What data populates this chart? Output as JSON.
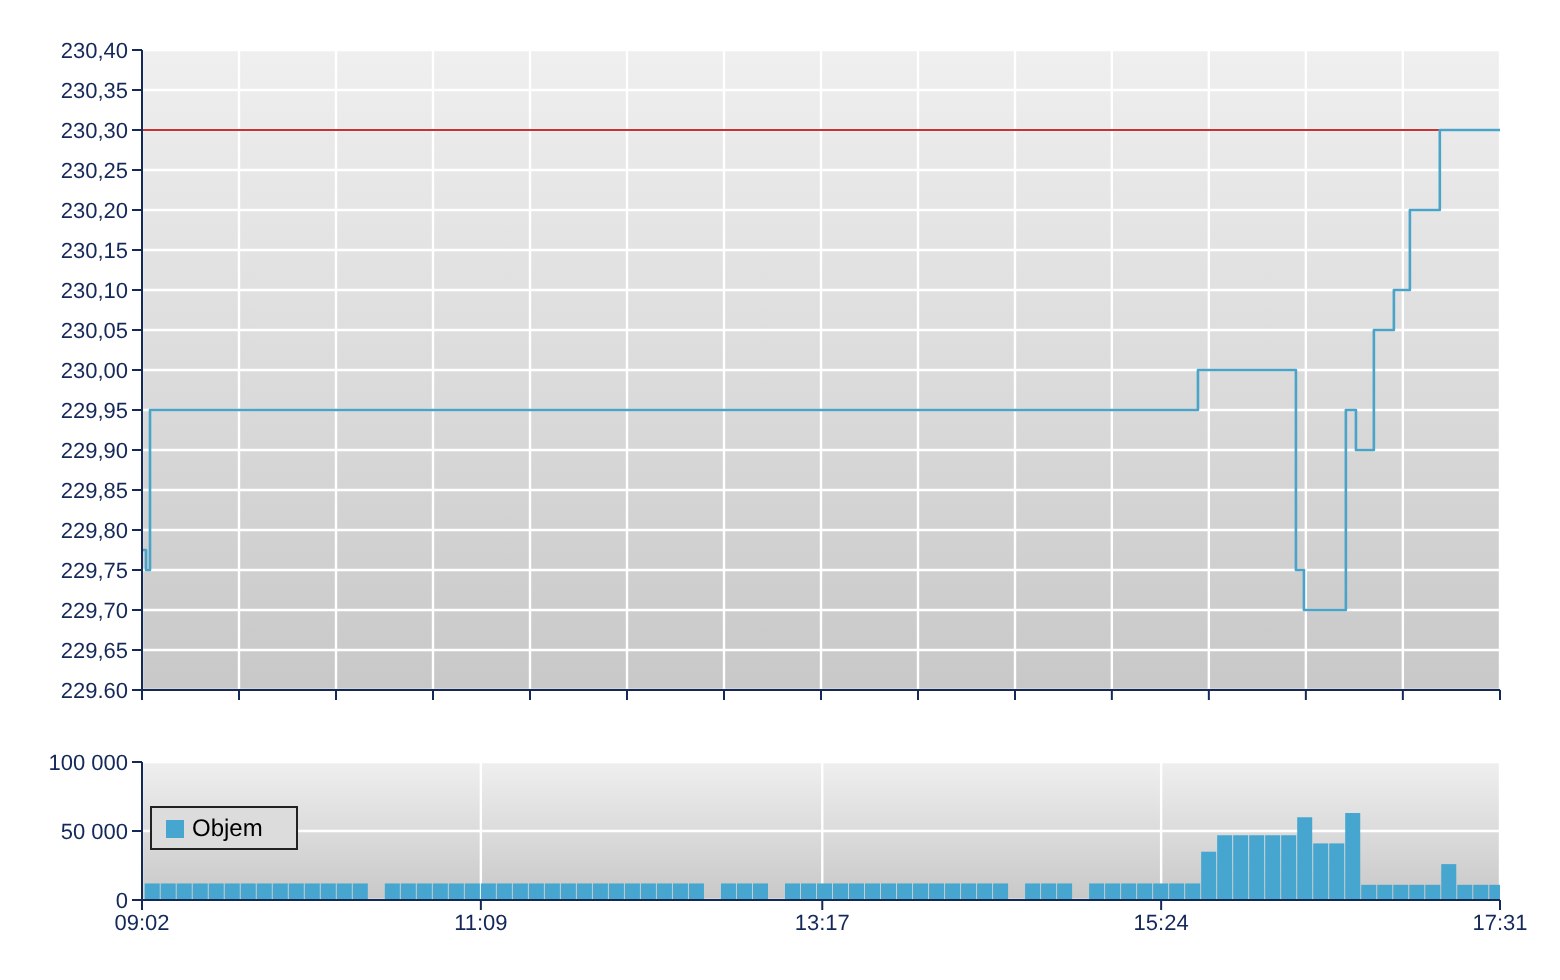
{
  "chart_data": [
    {
      "type": "step",
      "xlim": [
        9.033,
        17.517
      ],
      "ylim": [
        229.6,
        230.4
      ],
      "xticks": [
        {
          "value": 9.033,
          "label": null
        },
        {
          "value": 9.639,
          "label": null
        },
        {
          "value": 10.245,
          "label": null
        },
        {
          "value": 10.851,
          "label": null
        },
        {
          "value": 11.457,
          "label": null
        },
        {
          "value": 12.063,
          "label": null
        },
        {
          "value": 12.669,
          "label": null
        },
        {
          "value": 13.275,
          "label": null
        },
        {
          "value": 13.881,
          "label": null
        },
        {
          "value": 14.487,
          "label": null
        },
        {
          "value": 15.092,
          "label": null
        },
        {
          "value": 15.698,
          "label": null
        },
        {
          "value": 16.304,
          "label": null
        },
        {
          "value": 16.91,
          "label": null
        },
        {
          "value": 17.517,
          "label": null
        }
      ],
      "yticks": [
        {
          "value": 229.6,
          "label": "229.60"
        },
        {
          "value": 229.65,
          "label": "229,65"
        },
        {
          "value": 229.7,
          "label": "229,70"
        },
        {
          "value": 229.75,
          "label": "229,75"
        },
        {
          "value": 229.8,
          "label": "229,80"
        },
        {
          "value": 229.85,
          "label": "229,85"
        },
        {
          "value": 229.9,
          "label": "229,90"
        },
        {
          "value": 229.95,
          "label": "229,95"
        },
        {
          "value": 230,
          "label": "230,00"
        },
        {
          "value": 230.05,
          "label": "230,05"
        },
        {
          "value": 230.1,
          "label": "230,10"
        },
        {
          "value": 230.15,
          "label": "230,15"
        },
        {
          "value": 230.2,
          "label": "230,20"
        },
        {
          "value": 230.25,
          "label": "230,25"
        },
        {
          "value": 230.3,
          "label": "230,30"
        },
        {
          "value": 230.35,
          "label": "230,35"
        },
        {
          "value": 230.4,
          "label": "230,40"
        }
      ],
      "tick_labels": "y",
      "grid": true,
      "ref_lines": [
        {
          "axis": "y",
          "value": 230.3,
          "color": "#c83232"
        }
      ],
      "series": [
        {
          "color": "#4aa3c8",
          "x": [
            9.033,
            9.058,
            9.083,
            15.63,
            16.242,
            16.292,
            16.554,
            16.617,
            16.729,
            16.854,
            16.954,
            17.141,
            17.517
          ],
          "values": [
            229.775,
            229.75,
            229.95,
            230.0,
            229.75,
            229.7,
            229.95,
            229.9,
            230.05,
            230.1,
            230.2,
            230.3,
            230.3
          ]
        }
      ]
    },
    {
      "type": "bar",
      "xlim": [
        9.033,
        17.517
      ],
      "ylim": [
        0,
        100000
      ],
      "xticks": [
        {
          "value": 9.033,
          "label": "09:02"
        },
        {
          "value": 11.15,
          "label": "11:09"
        },
        {
          "value": 13.283,
          "label": "13:17"
        },
        {
          "value": 15.4,
          "label": "15:24"
        },
        {
          "value": 17.517,
          "label": "17:31"
        }
      ],
      "yticks": [
        {
          "value": 0,
          "label": "0"
        },
        {
          "value": 50000,
          "label": "50 000"
        },
        {
          "value": 100000,
          "label": "100 000"
        }
      ],
      "grid": true,
      "legend": "left",
      "series": [
        {
          "name": "Objem",
          "color": "#46a6cf",
          "x": [
            9.1,
            9.2,
            9.3,
            9.4,
            9.5,
            9.6,
            9.7,
            9.8,
            9.9,
            10.0,
            10.1,
            10.2,
            10.3,
            10.4,
            10.5,
            10.6,
            10.7,
            10.8,
            10.9,
            11.0,
            11.1,
            11.2,
            11.3,
            11.4,
            11.5,
            11.6,
            11.7,
            11.8,
            11.9,
            12.0,
            12.1,
            12.2,
            12.3,
            12.4,
            12.5,
            12.6,
            12.7,
            12.8,
            12.9,
            13.0,
            13.1,
            13.2,
            13.3,
            13.4,
            13.5,
            13.6,
            13.7,
            13.8,
            13.9,
            14.0,
            14.1,
            14.2,
            14.3,
            14.4,
            14.5,
            14.6,
            14.7,
            14.8,
            14.9,
            15.0,
            15.1,
            15.2,
            15.3,
            15.4,
            15.5,
            15.6,
            15.7,
            15.8,
            15.9,
            16.0,
            16.1,
            16.2,
            16.3,
            16.4,
            16.5,
            16.6,
            16.7,
            16.8,
            16.9,
            17.0,
            17.1,
            17.2,
            17.3,
            17.4,
            17.5
          ],
          "values": [
            12000,
            12000,
            12000,
            12000,
            12000,
            12000,
            12000,
            12000,
            12000,
            12000,
            12000,
            12000,
            12000,
            12000,
            null,
            12000,
            12000,
            12000,
            12000,
            12000,
            12000,
            12000,
            12000,
            12000,
            12000,
            12000,
            12000,
            12000,
            12000,
            12000,
            12000,
            12000,
            12000,
            12000,
            12000,
            null,
            12000,
            12000,
            12000,
            null,
            12000,
            12000,
            12000,
            12000,
            12000,
            12000,
            12000,
            12000,
            12000,
            12000,
            12000,
            12000,
            12000,
            12000,
            null,
            12000,
            12000,
            12000,
            null,
            12000,
            12000,
            12000,
            12000,
            12000,
            12000,
            12000,
            35000,
            47000,
            47000,
            47000,
            47000,
            47000,
            60000,
            41000,
            41000,
            63000,
            11000,
            11000,
            11000,
            11000,
            11000,
            26000,
            11000,
            11000,
            11000
          ]
        }
      ]
    }
  ]
}
